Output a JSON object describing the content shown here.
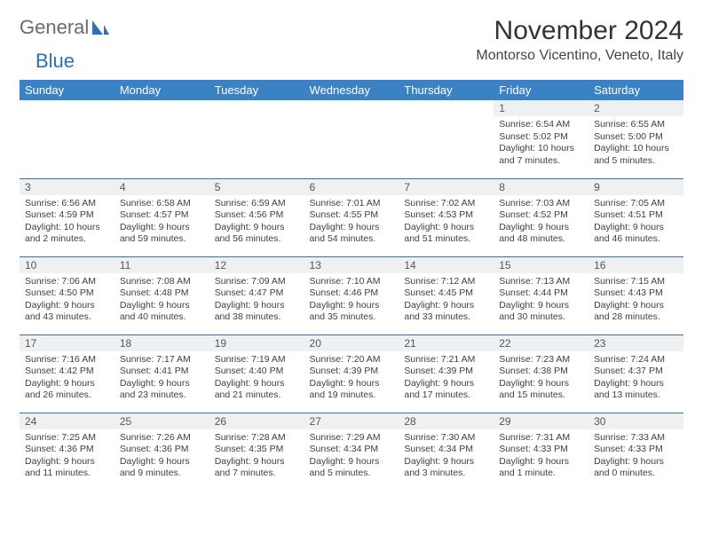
{
  "brand": {
    "part1": "General",
    "part2": "Blue"
  },
  "title": "November 2024",
  "location": "Montorso Vicentino, Veneto, Italy",
  "colors": {
    "header_bg": "#3a82c4",
    "header_fg": "#ffffff",
    "rule": "#3a6ea5",
    "daynum_bg": "#eef0f2",
    "brand_gray": "#6b6b6b",
    "brand_blue": "#2a72b5"
  },
  "weekdays": [
    "Sunday",
    "Monday",
    "Tuesday",
    "Wednesday",
    "Thursday",
    "Friday",
    "Saturday"
  ],
  "weeks": [
    [
      {
        "n": "",
        "sr": "",
        "ss": "",
        "dl": ""
      },
      {
        "n": "",
        "sr": "",
        "ss": "",
        "dl": ""
      },
      {
        "n": "",
        "sr": "",
        "ss": "",
        "dl": ""
      },
      {
        "n": "",
        "sr": "",
        "ss": "",
        "dl": ""
      },
      {
        "n": "",
        "sr": "",
        "ss": "",
        "dl": ""
      },
      {
        "n": "1",
        "sr": "Sunrise: 6:54 AM",
        "ss": "Sunset: 5:02 PM",
        "dl": "Daylight: 10 hours and 7 minutes."
      },
      {
        "n": "2",
        "sr": "Sunrise: 6:55 AM",
        "ss": "Sunset: 5:00 PM",
        "dl": "Daylight: 10 hours and 5 minutes."
      }
    ],
    [
      {
        "n": "3",
        "sr": "Sunrise: 6:56 AM",
        "ss": "Sunset: 4:59 PM",
        "dl": "Daylight: 10 hours and 2 minutes."
      },
      {
        "n": "4",
        "sr": "Sunrise: 6:58 AM",
        "ss": "Sunset: 4:57 PM",
        "dl": "Daylight: 9 hours and 59 minutes."
      },
      {
        "n": "5",
        "sr": "Sunrise: 6:59 AM",
        "ss": "Sunset: 4:56 PM",
        "dl": "Daylight: 9 hours and 56 minutes."
      },
      {
        "n": "6",
        "sr": "Sunrise: 7:01 AM",
        "ss": "Sunset: 4:55 PM",
        "dl": "Daylight: 9 hours and 54 minutes."
      },
      {
        "n": "7",
        "sr": "Sunrise: 7:02 AM",
        "ss": "Sunset: 4:53 PM",
        "dl": "Daylight: 9 hours and 51 minutes."
      },
      {
        "n": "8",
        "sr": "Sunrise: 7:03 AM",
        "ss": "Sunset: 4:52 PM",
        "dl": "Daylight: 9 hours and 48 minutes."
      },
      {
        "n": "9",
        "sr": "Sunrise: 7:05 AM",
        "ss": "Sunset: 4:51 PM",
        "dl": "Daylight: 9 hours and 46 minutes."
      }
    ],
    [
      {
        "n": "10",
        "sr": "Sunrise: 7:06 AM",
        "ss": "Sunset: 4:50 PM",
        "dl": "Daylight: 9 hours and 43 minutes."
      },
      {
        "n": "11",
        "sr": "Sunrise: 7:08 AM",
        "ss": "Sunset: 4:48 PM",
        "dl": "Daylight: 9 hours and 40 minutes."
      },
      {
        "n": "12",
        "sr": "Sunrise: 7:09 AM",
        "ss": "Sunset: 4:47 PM",
        "dl": "Daylight: 9 hours and 38 minutes."
      },
      {
        "n": "13",
        "sr": "Sunrise: 7:10 AM",
        "ss": "Sunset: 4:46 PM",
        "dl": "Daylight: 9 hours and 35 minutes."
      },
      {
        "n": "14",
        "sr": "Sunrise: 7:12 AM",
        "ss": "Sunset: 4:45 PM",
        "dl": "Daylight: 9 hours and 33 minutes."
      },
      {
        "n": "15",
        "sr": "Sunrise: 7:13 AM",
        "ss": "Sunset: 4:44 PM",
        "dl": "Daylight: 9 hours and 30 minutes."
      },
      {
        "n": "16",
        "sr": "Sunrise: 7:15 AM",
        "ss": "Sunset: 4:43 PM",
        "dl": "Daylight: 9 hours and 28 minutes."
      }
    ],
    [
      {
        "n": "17",
        "sr": "Sunrise: 7:16 AM",
        "ss": "Sunset: 4:42 PM",
        "dl": "Daylight: 9 hours and 26 minutes."
      },
      {
        "n": "18",
        "sr": "Sunrise: 7:17 AM",
        "ss": "Sunset: 4:41 PM",
        "dl": "Daylight: 9 hours and 23 minutes."
      },
      {
        "n": "19",
        "sr": "Sunrise: 7:19 AM",
        "ss": "Sunset: 4:40 PM",
        "dl": "Daylight: 9 hours and 21 minutes."
      },
      {
        "n": "20",
        "sr": "Sunrise: 7:20 AM",
        "ss": "Sunset: 4:39 PM",
        "dl": "Daylight: 9 hours and 19 minutes."
      },
      {
        "n": "21",
        "sr": "Sunrise: 7:21 AM",
        "ss": "Sunset: 4:39 PM",
        "dl": "Daylight: 9 hours and 17 minutes."
      },
      {
        "n": "22",
        "sr": "Sunrise: 7:23 AM",
        "ss": "Sunset: 4:38 PM",
        "dl": "Daylight: 9 hours and 15 minutes."
      },
      {
        "n": "23",
        "sr": "Sunrise: 7:24 AM",
        "ss": "Sunset: 4:37 PM",
        "dl": "Daylight: 9 hours and 13 minutes."
      }
    ],
    [
      {
        "n": "24",
        "sr": "Sunrise: 7:25 AM",
        "ss": "Sunset: 4:36 PM",
        "dl": "Daylight: 9 hours and 11 minutes."
      },
      {
        "n": "25",
        "sr": "Sunrise: 7:26 AM",
        "ss": "Sunset: 4:36 PM",
        "dl": "Daylight: 9 hours and 9 minutes."
      },
      {
        "n": "26",
        "sr": "Sunrise: 7:28 AM",
        "ss": "Sunset: 4:35 PM",
        "dl": "Daylight: 9 hours and 7 minutes."
      },
      {
        "n": "27",
        "sr": "Sunrise: 7:29 AM",
        "ss": "Sunset: 4:34 PM",
        "dl": "Daylight: 9 hours and 5 minutes."
      },
      {
        "n": "28",
        "sr": "Sunrise: 7:30 AM",
        "ss": "Sunset: 4:34 PM",
        "dl": "Daylight: 9 hours and 3 minutes."
      },
      {
        "n": "29",
        "sr": "Sunrise: 7:31 AM",
        "ss": "Sunset: 4:33 PM",
        "dl": "Daylight: 9 hours and 1 minute."
      },
      {
        "n": "30",
        "sr": "Sunrise: 7:33 AM",
        "ss": "Sunset: 4:33 PM",
        "dl": "Daylight: 9 hours and 0 minutes."
      }
    ]
  ]
}
